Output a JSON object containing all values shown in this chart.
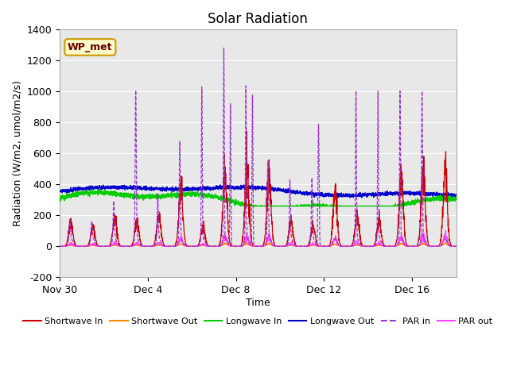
{
  "title": "Solar Radiation",
  "xlabel": "Time",
  "ylabel": "Radiation (W/m2, umol/m2/s)",
  "ylim": [
    -200,
    1400
  ],
  "yticks": [
    -200,
    0,
    200,
    400,
    600,
    800,
    1000,
    1200,
    1400
  ],
  "xtick_labels": [
    "Nov 30",
    "Dec 4",
    "Dec 8",
    "Dec 12",
    "Dec 16"
  ],
  "xtick_positions": [
    0,
    4,
    8,
    12,
    16
  ],
  "bg_color": "#e8e8e8",
  "annotation_text": "WP_met",
  "annotation_bg": "#ffffcc",
  "annotation_border": "#cc9900",
  "annotation_text_color": "#660000",
  "legend_entries": [
    {
      "label": "Shortwave In",
      "color": "#cc0000",
      "linestyle": "-"
    },
    {
      "label": "Shortwave Out",
      "color": "#ff8800",
      "linestyle": "-"
    },
    {
      "label": "Longwave In",
      "color": "#00cc00",
      "linestyle": "-"
    },
    {
      "label": "Longwave Out",
      "color": "#0000cc",
      "linestyle": "-"
    },
    {
      "label": "PAR in",
      "color": "#9933cc",
      "linestyle": "--"
    },
    {
      "label": "PAR out",
      "color": "#ff44ff",
      "linestyle": "-"
    }
  ],
  "figsize": [
    6.4,
    4.8
  ],
  "dpi": 100
}
